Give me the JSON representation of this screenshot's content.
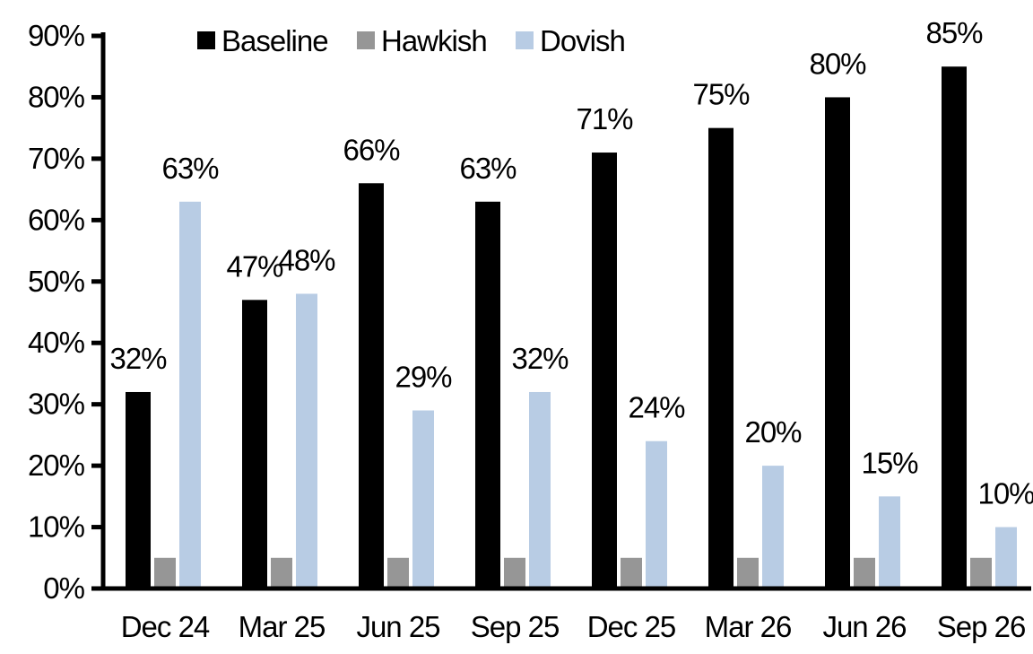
{
  "chart_data": {
    "type": "bar",
    "title": "",
    "categories": [
      "Dec 24",
      "Mar 25",
      "Jun 25",
      "Sep 25",
      "Dec 25",
      "Mar 26",
      "Jun 26",
      "Sep 26"
    ],
    "series": [
      {
        "name": "Baseline",
        "color": "#000000",
        "values": [
          32,
          47,
          66,
          63,
          71,
          75,
          80,
          85
        ],
        "labels_shown": true
      },
      {
        "name": "Hawkish",
        "color": "#969696",
        "values": [
          5,
          5,
          5,
          5,
          5,
          5,
          5,
          5
        ],
        "labels_shown": false
      },
      {
        "name": "Dovish",
        "color": "#B8CCE4",
        "values": [
          63,
          48,
          29,
          32,
          24,
          20,
          15,
          10
        ],
        "labels_shown": true
      }
    ],
    "value_label_format": "{v}%",
    "ylim": [
      0,
      90
    ],
    "ytick_step": 10,
    "ytick_labels": [
      "0%",
      "10%",
      "20%",
      "30%",
      "40%",
      "50%",
      "60%",
      "70%",
      "80%",
      "90%"
    ],
    "xlabel": "",
    "ylabel": "",
    "grid": false,
    "legend_position": "top",
    "background_color": "#FFFFFF",
    "axis_color": "#000000"
  }
}
